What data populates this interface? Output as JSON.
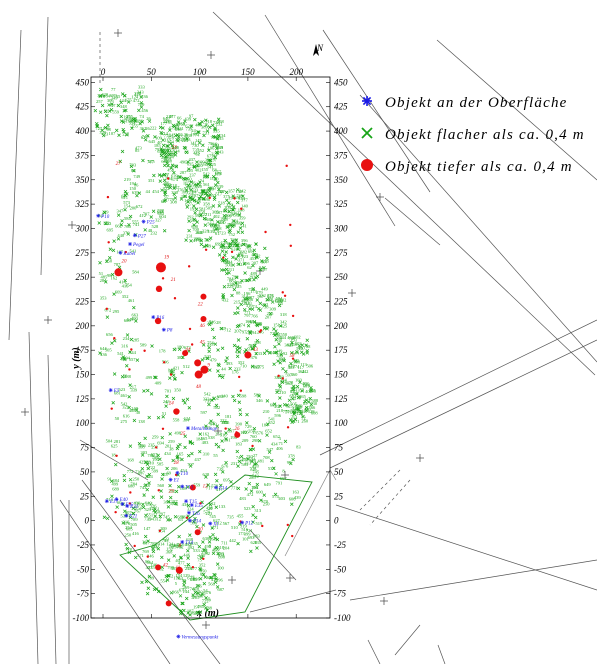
{
  "legend": {
    "items": [
      {
        "symbol": "asterisk",
        "color": "#1a1ae6",
        "label": "Objekt an der Oberfläche"
      },
      {
        "symbol": "cross",
        "color": "#17a417",
        "label": "Objekt flacher als ca. 0,4 m"
      },
      {
        "symbol": "dot",
        "color": "#e81010",
        "label": "Objekt tiefer als ca. 0,4 m"
      }
    ]
  },
  "axes": {
    "y_title": "y (m)",
    "x_title": "x (m)",
    "x_ticks": [
      "0",
      "50",
      "100",
      "150",
      "200"
    ],
    "y_ticks": [
      "450",
      "425",
      "400",
      "375",
      "350",
      "325",
      "300",
      "275",
      "250",
      "225",
      "200",
      "175",
      "150",
      "125",
      "100",
      "75",
      "50",
      "25",
      "0",
      "-25",
      "-50",
      "-75",
      "-100"
    ],
    "xlim": [
      -10,
      225
    ],
    "ylim": [
      -100,
      450
    ]
  },
  "north_arrow": "N",
  "blue_labels": [
    {
      "text": "P10",
      "x": -5,
      "y": 313
    },
    {
      "text": "P25",
      "x": 42,
      "y": 307
    },
    {
      "text": "P27",
      "x": 33,
      "y": 293
    },
    {
      "text": "Pegel",
      "x": 28,
      "y": 284
    },
    {
      "text": "Kabel",
      "x": 18,
      "y": 275
    },
    {
      "text": "P16",
      "x": 52,
      "y": 209
    },
    {
      "text": "P8",
      "x": 63,
      "y": 196
    },
    {
      "text": "E5",
      "x": 8,
      "y": 134
    },
    {
      "text": "Metallstange",
      "x": 88,
      "y": 95
    },
    {
      "text": "E1",
      "x": 70,
      "y": 42
    },
    {
      "text": "T10",
      "x": 77,
      "y": 49
    },
    {
      "text": "T13",
      "x": 82,
      "y": 35
    },
    {
      "text": "T15",
      "x": 86,
      "y": 20
    },
    {
      "text": "E35",
      "x": 92,
      "y": 16
    },
    {
      "text": "E14",
      "x": 117,
      "y": 34
    },
    {
      "text": "T16",
      "x": 89,
      "y": 8
    },
    {
      "text": "P12",
      "x": 144,
      "y": -2
    },
    {
      "text": "P14",
      "x": 90,
      "y": 0
    },
    {
      "text": "E40",
      "x": 14,
      "y": 22
    },
    {
      "text": "E35",
      "x": 20,
      "y": 17
    },
    {
      "text": "E21",
      "x": 24,
      "y": 5
    },
    {
      "text": "E17",
      "x": 4,
      "y": 20
    },
    {
      "text": "E31",
      "x": 25,
      "y": 15
    },
    {
      "text": "T14",
      "x": 82,
      "y": -22
    },
    {
      "text": "X1",
      "x": 111,
      "y": -3
    },
    {
      "text": "Vermessungspunkt",
      "x": 78,
      "y": -119
    }
  ],
  "red_labels": [
    {
      "text": "27",
      "x": 10,
      "y": 363
    },
    {
      "text": "23",
      "x": 68,
      "y": 380
    },
    {
      "text": "20",
      "x": 16,
      "y": 263
    },
    {
      "text": "19",
      "x": 60,
      "y": 267
    },
    {
      "text": "21",
      "x": 67,
      "y": 244
    },
    {
      "text": "22",
      "x": 95,
      "y": 219
    },
    {
      "text": "44",
      "x": 82,
      "y": 172
    },
    {
      "text": "46",
      "x": 97,
      "y": 197
    },
    {
      "text": "45",
      "x": 97,
      "y": 180
    },
    {
      "text": "9",
      "x": 105,
      "y": 156
    },
    {
      "text": "47",
      "x": 97,
      "y": 148
    },
    {
      "text": "48",
      "x": 93,
      "y": 134
    },
    {
      "text": "43",
      "x": 152,
      "y": 172
    },
    {
      "text": "58",
      "x": 190,
      "y": 166
    },
    {
      "text": "24",
      "x": 65,
      "y": 117
    },
    {
      "text": "25",
      "x": 77,
      "y": 86
    },
    {
      "text": "26",
      "x": 133,
      "y": 91
    },
    {
      "text": "28",
      "x": 70,
      "y": 56
    },
    {
      "text": "12",
      "x": 100,
      "y": 32
    },
    {
      "text": "29",
      "x": 65,
      "y": 27
    },
    {
      "text": "30",
      "x": 95,
      "y": -12
    },
    {
      "text": "42",
      "x": 59,
      "y": -49
    },
    {
      "text": "11",
      "x": 72,
      "y": -52
    },
    {
      "text": "8",
      "x": 75,
      "y": -29
    }
  ]
}
